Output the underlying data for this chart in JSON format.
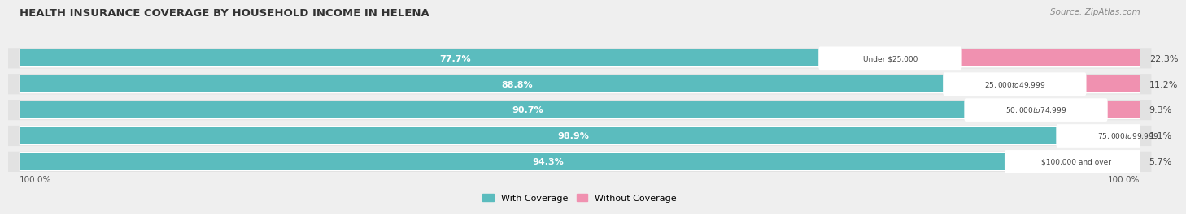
{
  "title": "HEALTH INSURANCE COVERAGE BY HOUSEHOLD INCOME IN HELENA",
  "source": "Source: ZipAtlas.com",
  "categories": [
    "Under $25,000",
    "$25,000 to $49,999",
    "$50,000 to $74,999",
    "$75,000 to $99,999",
    "$100,000 and over"
  ],
  "with_coverage": [
    77.7,
    88.8,
    90.7,
    98.9,
    94.3
  ],
  "without_coverage": [
    22.3,
    11.2,
    9.3,
    1.1,
    5.7
  ],
  "color_coverage": "#5bbcbe",
  "color_no_coverage": "#f091b0",
  "bar_height": 0.65,
  "background_color": "#efefef",
  "bar_bg_color": "#ffffff",
  "row_bg_color": "#e8e8e8",
  "title_fontsize": 9.5,
  "label_fontsize": 8,
  "tick_fontsize": 7.5,
  "legend_fontsize": 8,
  "xlim": [
    0,
    100
  ],
  "legend_left_label": "100.0%",
  "legend_right_label": "100.0%"
}
